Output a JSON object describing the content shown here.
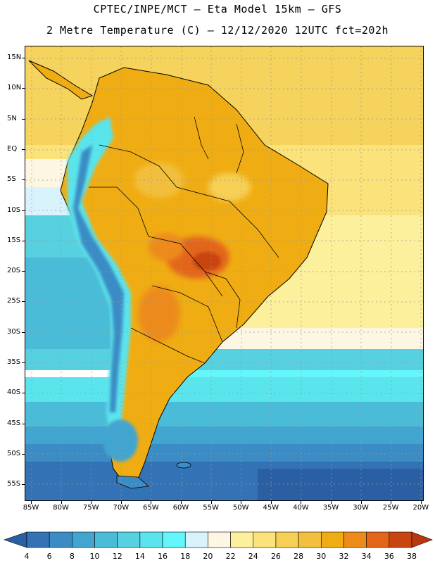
{
  "header": {
    "line1": "CPTEC/INPE/MCT –  Eta Model 15km – GFS",
    "line2": "2 Metre Temperature (C) – 12/12/2020 12UTC fct=202h"
  },
  "map": {
    "lat_labels": [
      "15N",
      "10N",
      "5N",
      "EQ",
      "5S",
      "10S",
      "15S",
      "20S",
      "25S",
      "30S",
      "35S",
      "40S",
      "45S",
      "50S",
      "55S"
    ],
    "lon_labels": [
      "85W",
      "80W",
      "75W",
      "70W",
      "65W",
      "60W",
      "55W",
      "50W",
      "45W",
      "40W",
      "35W",
      "30W",
      "25W",
      "20W"
    ]
  },
  "colorbar": {
    "labels": [
      "4",
      "6",
      "8",
      "10",
      "12",
      "14",
      "16",
      "18",
      "20",
      "22",
      "24",
      "26",
      "28",
      "30",
      "32",
      "34",
      "36",
      "38"
    ],
    "colors": [
      "#2a5fa3",
      "#3372b4",
      "#3b8bc4",
      "#42a5cf",
      "#4bbcd8",
      "#57d0e0",
      "#5ae4ec",
      "#64f6fa",
      "#d8f3fb",
      "#fdf6e3",
      "#fcf09c",
      "#fbe27a",
      "#f6cf55",
      "#f2bf3e",
      "#f0ad13",
      "#ec8b1a",
      "#e2651a",
      "#c84510",
      "#b83810"
    ]
  }
}
